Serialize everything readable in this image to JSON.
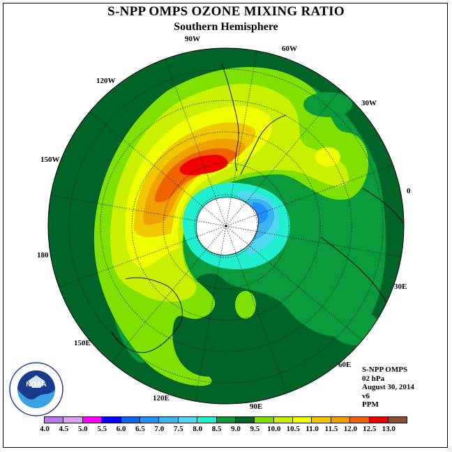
{
  "title": "S-NPP OMPS OZONE MIXING RATIO",
  "subtitle": "Southern Hemisphere",
  "longitude_labels": [
    "90W",
    "60W",
    "30W",
    "0",
    "30E",
    "60E",
    "90E",
    "120E",
    "150E",
    "180",
    "150W",
    "120W"
  ],
  "info": {
    "instrument": "S-NPP OMPS",
    "pressure_level": "02 hPa",
    "date": "August 30, 2014",
    "version": "v6",
    "units": "PPM"
  },
  "logo_text": "NOAA",
  "colorbar": {
    "ticks": [
      "4.0",
      "4.5",
      "5.0",
      "5.5",
      "6.0",
      "6.5",
      "7.0",
      "7.5",
      "8.0",
      "8.5",
      "9.0",
      "9.5",
      "10.0",
      "10.5",
      "11.0",
      "11.5",
      "12.0",
      "12.5",
      "13.0"
    ],
    "colors": [
      "#b57be8",
      "#e0a0f0",
      "#ff00ff",
      "#0000ff",
      "#0a64f0",
      "#1e90ff",
      "#3cb4f0",
      "#50d8f0",
      "#20f0d0",
      "#0a9a3c",
      "#006428",
      "#80e000",
      "#c8f000",
      "#f0ff00",
      "#f0c800",
      "#f0a000",
      "#f06400",
      "#f00000",
      "#8c5030"
    ]
  }
}
